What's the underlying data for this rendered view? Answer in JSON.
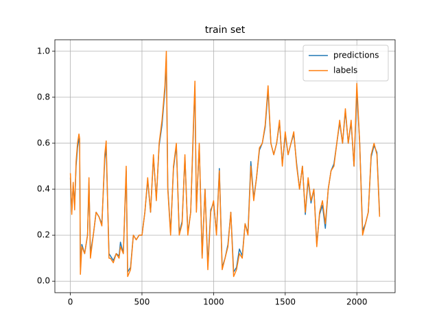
{
  "chart_data": {
    "type": "line",
    "title": "train set",
    "x": [
      0,
      10,
      20,
      30,
      40,
      50,
      60,
      65,
      70,
      80,
      100,
      120,
      130,
      140,
      160,
      180,
      200,
      220,
      240,
      250,
      270,
      280,
      300,
      320,
      340,
      350,
      370,
      390,
      400,
      420,
      440,
      460,
      480,
      500,
      520,
      540,
      560,
      580,
      600,
      620,
      640,
      660,
      670,
      680,
      700,
      720,
      740,
      760,
      780,
      800,
      820,
      840,
      860,
      870,
      880,
      900,
      920,
      940,
      960,
      980,
      1000,
      1020,
      1040,
      1060,
      1080,
      1100,
      1120,
      1140,
      1160,
      1180,
      1200,
      1220,
      1240,
      1260,
      1280,
      1300,
      1320,
      1340,
      1360,
      1380,
      1400,
      1420,
      1440,
      1460,
      1480,
      1500,
      1520,
      1540,
      1560,
      1580,
      1600,
      1620,
      1640,
      1660,
      1680,
      1700,
      1720,
      1740,
      1760,
      1780,
      1800,
      1820,
      1840,
      1860,
      1880,
      1900,
      1920,
      1940,
      1960,
      1980,
      2000,
      2020,
      2040,
      2060,
      2080,
      2100,
      2120,
      2140,
      2159
    ],
    "series": [
      {
        "name": "predictions",
        "color": "#1f77b4",
        "values": [
          0.45,
          0.3,
          0.42,
          0.33,
          0.5,
          0.58,
          0.62,
          0.6,
          0.06,
          0.16,
          0.12,
          0.2,
          0.43,
          0.12,
          0.2,
          0.3,
          0.28,
          0.25,
          0.53,
          0.58,
          0.12,
          0.11,
          0.09,
          0.12,
          0.11,
          0.17,
          0.12,
          0.48,
          0.04,
          0.06,
          0.2,
          0.18,
          0.2,
          0.2,
          0.3,
          0.44,
          0.3,
          0.54,
          0.36,
          0.59,
          0.68,
          0.83,
          0.96,
          0.41,
          0.21,
          0.49,
          0.59,
          0.21,
          0.26,
          0.54,
          0.21,
          0.3,
          0.68,
          0.85,
          0.31,
          0.59,
          0.11,
          0.4,
          0.07,
          0.31,
          0.34,
          0.21,
          0.49,
          0.06,
          0.1,
          0.16,
          0.3,
          0.04,
          0.06,
          0.14,
          0.11,
          0.25,
          0.21,
          0.52,
          0.36,
          0.45,
          0.57,
          0.6,
          0.67,
          0.83,
          0.6,
          0.55,
          0.6,
          0.69,
          0.51,
          0.64,
          0.55,
          0.6,
          0.64,
          0.51,
          0.4,
          0.5,
          0.29,
          0.44,
          0.34,
          0.4,
          0.16,
          0.29,
          0.33,
          0.23,
          0.4,
          0.48,
          0.51,
          0.6,
          0.69,
          0.6,
          0.74,
          0.6,
          0.69,
          0.5,
          0.83,
          0.6,
          0.22,
          0.25,
          0.3,
          0.54,
          0.59,
          0.56,
          0.29
        ]
      },
      {
        "name": "labels",
        "color": "#ff7f0e",
        "values": [
          0.47,
          0.29,
          0.43,
          0.31,
          0.52,
          0.6,
          0.64,
          0.62,
          0.03,
          0.15,
          0.12,
          0.2,
          0.45,
          0.1,
          0.2,
          0.3,
          0.28,
          0.24,
          0.55,
          0.61,
          0.1,
          0.1,
          0.08,
          0.12,
          0.1,
          0.15,
          0.12,
          0.5,
          0.02,
          0.05,
          0.2,
          0.18,
          0.2,
          0.2,
          0.3,
          0.45,
          0.3,
          0.55,
          0.35,
          0.6,
          0.7,
          0.85,
          1.0,
          0.4,
          0.2,
          0.5,
          0.6,
          0.2,
          0.25,
          0.55,
          0.2,
          0.3,
          0.7,
          0.87,
          0.3,
          0.6,
          0.1,
          0.4,
          0.05,
          0.3,
          0.35,
          0.2,
          0.48,
          0.05,
          0.1,
          0.15,
          0.3,
          0.02,
          0.05,
          0.12,
          0.1,
          0.25,
          0.2,
          0.5,
          0.35,
          0.45,
          0.58,
          0.6,
          0.68,
          0.85,
          0.6,
          0.55,
          0.6,
          0.7,
          0.5,
          0.65,
          0.55,
          0.6,
          0.65,
          0.5,
          0.4,
          0.5,
          0.3,
          0.45,
          0.35,
          0.4,
          0.15,
          0.3,
          0.35,
          0.25,
          0.4,
          0.48,
          0.5,
          0.6,
          0.7,
          0.6,
          0.75,
          0.6,
          0.7,
          0.5,
          0.86,
          0.6,
          0.2,
          0.25,
          0.3,
          0.55,
          0.6,
          0.55,
          0.28
        ]
      }
    ],
    "xlim": [
      -108,
      2267
    ],
    "ylim": [
      -0.05,
      1.05
    ],
    "xticks": [
      0,
      500,
      1000,
      1500,
      2000
    ],
    "yticks": [
      {
        "value": 0,
        "label": "0.0"
      },
      0.2,
      0.4,
      0.6,
      0.8,
      {
        "value": 1,
        "label": "1.0"
      }
    ],
    "grid": true,
    "legend": "upper right"
  }
}
